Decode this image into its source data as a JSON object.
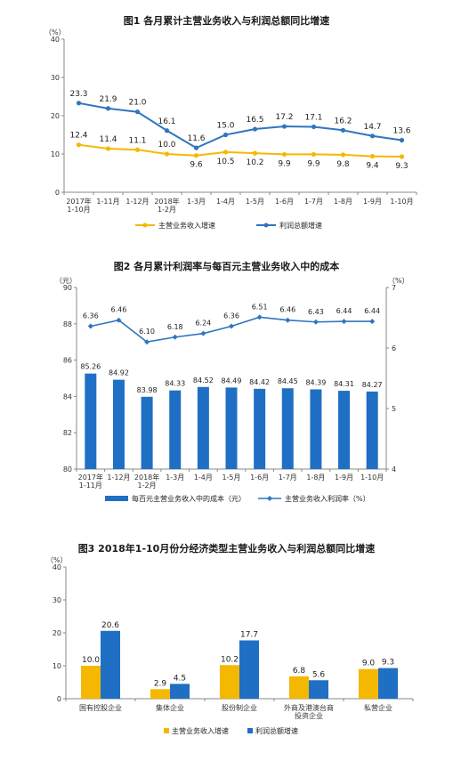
{
  "chart_data": [
    {
      "type": "line",
      "title": "图1 各月累计主营业务收入与利润总额同比增速",
      "ylabel": "（%）",
      "ylim": [
        0,
        40
      ],
      "yticks": [
        0,
        10,
        20,
        30,
        40
      ],
      "categories": [
        "2017年 1-10月",
        "1-11月",
        "1-12月",
        "2018年 1-2月",
        "1-3月",
        "1-4月",
        "1-5月",
        "1-6月",
        "1-7月",
        "1-8月",
        "1-9月",
        "1-10月"
      ],
      "series": [
        {
          "name": "主营业务收入增速",
          "color": "#F5B800",
          "values": [
            12.4,
            11.4,
            11.1,
            10.0,
            9.6,
            10.5,
            10.2,
            9.9,
            9.9,
            9.8,
            9.4,
            9.3
          ]
        },
        {
          "name": "利润总额增速",
          "color": "#2F75C0",
          "values": [
            23.3,
            21.9,
            21.0,
            16.1,
            11.6,
            15.0,
            16.5,
            17.2,
            17.1,
            16.2,
            14.7,
            13.6
          ]
        }
      ],
      "legend": "bottom"
    },
    {
      "type": "bar",
      "title": "图2 各月累计利润率与每百元主营业务收入中的成本",
      "ylabel_left": "（元）",
      "ylabel_right": "（%）",
      "ylim_left": [
        80,
        90
      ],
      "yticks_left": [
        80,
        82,
        84,
        86,
        88,
        90
      ],
      "ylim_right": [
        4,
        7
      ],
      "yticks_right": [
        4,
        5,
        6,
        7
      ],
      "categories": [
        "2017年 1-11月",
        "1-12月",
        "2018年 1-2月",
        "1-3月",
        "1-4月",
        "1-5月",
        "1-6月",
        "1-7月",
        "1-8月",
        "1-9月",
        "1-10月"
      ],
      "series": [
        {
          "name": "每百元主营业务收入中的成本（元）",
          "type": "bar",
          "axis": "left",
          "color": "#1F6FC5",
          "values": [
            85.26,
            84.92,
            83.98,
            84.33,
            84.52,
            84.49,
            84.42,
            84.45,
            84.39,
            84.31,
            84.27
          ]
        },
        {
          "name": "主营业务收入利润率（%）",
          "type": "line",
          "axis": "right",
          "color": "#2F75C0",
          "values": [
            6.36,
            6.46,
            6.1,
            6.18,
            6.24,
            6.36,
            6.51,
            6.46,
            6.43,
            6.44,
            6.44
          ]
        }
      ],
      "legend": "bottom"
    },
    {
      "type": "bar",
      "title": "图3 2018年1-10月份分经济类型主营业务收入与利润总额同比增速",
      "ylabel": "（%）",
      "ylim": [
        0,
        40
      ],
      "yticks": [
        0,
        10,
        20,
        30,
        40
      ],
      "categories": [
        "国有控股企业",
        "集体企业",
        "股份制企业",
        "外商及港澳台商 投资企业",
        "私营企业"
      ],
      "series": [
        {
          "name": "主营业务收入增速",
          "color": "#F5B800",
          "values": [
            10.0,
            2.9,
            10.2,
            6.8,
            9.0
          ]
        },
        {
          "name": "利润总额增速",
          "color": "#1F6FC5",
          "values": [
            20.6,
            4.5,
            17.7,
            5.6,
            9.3
          ]
        }
      ],
      "legend": "bottom"
    }
  ]
}
